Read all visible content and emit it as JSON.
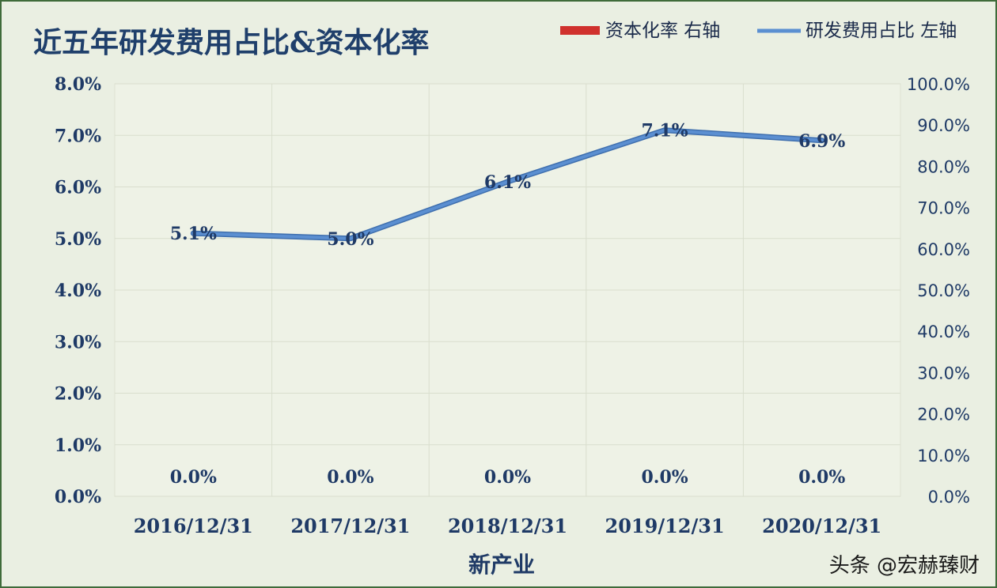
{
  "chart_data": {
    "type": "line",
    "title": "近五年研发费用占比&资本化率",
    "xlabel": "新产业",
    "categories": [
      "2016/12/31",
      "2017/12/31",
      "2018/12/31",
      "2019/12/31",
      "2020/12/31"
    ],
    "y_left": {
      "ticks": [
        "0.0%",
        "1.0%",
        "2.0%",
        "3.0%",
        "4.0%",
        "5.0%",
        "6.0%",
        "7.0%",
        "8.0%"
      ],
      "range": [
        0,
        8
      ]
    },
    "y_right": {
      "ticks": [
        "0.0%",
        "10.0%",
        "20.0%",
        "30.0%",
        "40.0%",
        "50.0%",
        "60.0%",
        "70.0%",
        "80.0%",
        "90.0%",
        "100.0%"
      ],
      "range": [
        0,
        100
      ]
    },
    "series": [
      {
        "name": "资本化率 右轴",
        "axis": "right",
        "color": "#d0312d",
        "values": [
          0.0,
          0.0,
          0.0,
          0.0,
          0.0
        ],
        "labels": [
          "0.0%",
          "0.0%",
          "0.0%",
          "0.0%",
          "0.0%"
        ]
      },
      {
        "name": "研发费用占比 左轴",
        "axis": "left",
        "color": "#5b8fd1",
        "values": [
          5.1,
          5.0,
          6.1,
          7.1,
          6.9
        ],
        "labels": [
          "5.1%",
          "5.0%",
          "6.1%",
          "7.1%",
          "6.9%"
        ]
      }
    ],
    "grid": true,
    "legend_position": "top-right"
  },
  "watermark": "头条 @宏赫臻财"
}
